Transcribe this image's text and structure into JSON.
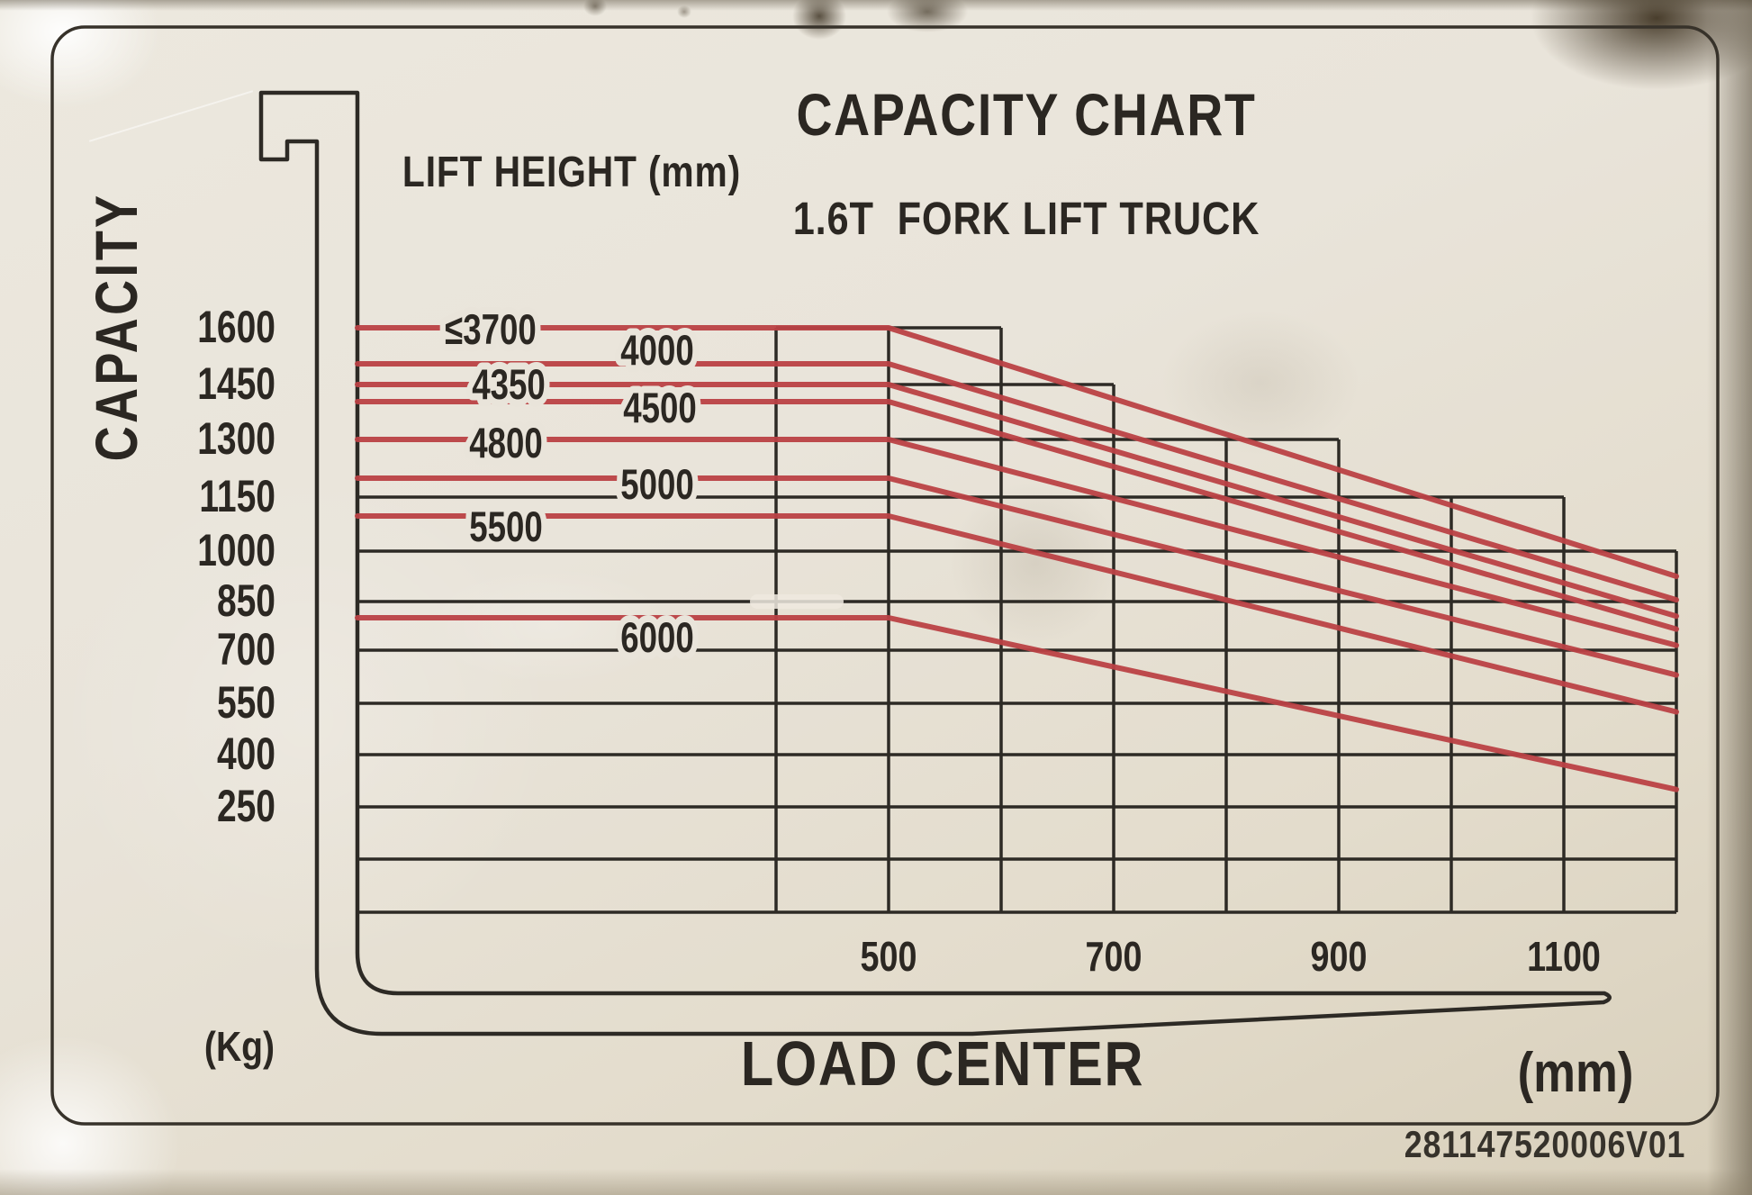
{
  "label": {
    "title": "CAPACITY CHART",
    "subtitle": "1.6T  FORK LIFT TRUCK",
    "serial_number": "281147520006V01"
  },
  "axes": {
    "y_title": "CAPACITY",
    "y_unit": "(Kg)",
    "x_title": "LOAD CENTER",
    "x_unit": "(mm)",
    "lift_height_title": "LIFT HEIGHT (mm)",
    "y_ticks_kg": [
      1600,
      1450,
      1300,
      1150,
      1000,
      850,
      700,
      550,
      400,
      250
    ],
    "x_ticks_mm": [
      500,
      700,
      900,
      1100
    ]
  },
  "colors": {
    "background": "#e9e4da",
    "line_black": "#2d2a25",
    "curve_red": "#bb4144",
    "text": "#2b2722",
    "border": "#37322a"
  },
  "chart_data": {
    "type": "line",
    "title": "CAPACITY CHART",
    "subtitle": "1.6T FORK LIFT TRUCK",
    "xlabel": "LOAD CENTER (mm)",
    "ylabel": "CAPACITY (Kg)",
    "x_range_mm": [
      400,
      1200
    ],
    "y_gridline_spacing_kg": 150,
    "x_gridline_spacing_mm": 100,
    "curves_flat_until_mm": 500,
    "curves_end_at_mm": 1200,
    "series": [
      {
        "lift_height_mm": "≤3700",
        "rated_capacity_kg": 1600,
        "capacity_at_1200mm_kg": 925
      },
      {
        "lift_height_mm": "4000",
        "rated_capacity_kg": 1500,
        "capacity_at_1200mm_kg": 855
      },
      {
        "lift_height_mm": "4350",
        "rated_capacity_kg": 1450,
        "capacity_at_1200mm_kg": 805
      },
      {
        "lift_height_mm": "4500",
        "rated_capacity_kg": 1400,
        "capacity_at_1200mm_kg": 765
      },
      {
        "lift_height_mm": "4800",
        "rated_capacity_kg": 1300,
        "capacity_at_1200mm_kg": 715
      },
      {
        "lift_height_mm": "5000",
        "rated_capacity_kg": 1200,
        "capacity_at_1200mm_kg": 630
      },
      {
        "lift_height_mm": "5500",
        "rated_capacity_kg": 1100,
        "capacity_at_1200mm_kg": 525
      },
      {
        "lift_height_mm": "6000",
        "rated_capacity_kg": 800,
        "capacity_at_1200mm_kg": 300
      }
    ],
    "h_gridlines": [
      {
        "kg": 1600,
        "label": "1600",
        "from_mm": 400,
        "to_mm": 600
      },
      {
        "kg": 1450,
        "label": "1450",
        "from_mm": 500,
        "to_mm": 700
      },
      {
        "kg": 1300,
        "label": "1300",
        "from_mm": 500,
        "to_mm": 900
      },
      {
        "kg": 1150,
        "label": "1150",
        "from_mm": null,
        "to_mm": 1100
      },
      {
        "kg": 1000,
        "label": "1000",
        "from_mm": null,
        "to_mm": 1200
      },
      {
        "kg": 850,
        "label": "850",
        "from_mm": null,
        "to_mm": 1200
      },
      {
        "kg": 700,
        "label": "700",
        "from_mm": null,
        "to_mm": 1200
      },
      {
        "kg": 550,
        "label": "550",
        "from_mm": null,
        "to_mm": 1200
      },
      {
        "kg": 400,
        "label": "400",
        "from_mm": null,
        "to_mm": 1200
      },
      {
        "kg": 250,
        "label": "250",
        "from_mm": null,
        "to_mm": 1200
      },
      {
        "kg": 100,
        "label": null,
        "from_mm": null,
        "to_mm": 1200
      },
      {
        "kg": -50,
        "label": null,
        "from_mm": null,
        "to_mm": 1200
      }
    ],
    "v_gridlines": [
      {
        "mm": 400,
        "top_kg": 1600
      },
      {
        "mm": 500,
        "top_kg": 1600
      },
      {
        "mm": 600,
        "top_kg": 1600
      },
      {
        "mm": 700,
        "top_kg": 1450
      },
      {
        "mm": 800,
        "top_kg": 1300
      },
      {
        "mm": 900,
        "top_kg": 1300
      },
      {
        "mm": 1000,
        "top_kg": 1150
      },
      {
        "mm": 1100,
        "top_kg": 1150
      },
      {
        "mm": 1200,
        "top_kg": 1000
      }
    ],
    "envelope_steps": [
      {
        "capacity_kg": 1600,
        "from_mm": 400,
        "to_mm": 600
      },
      {
        "capacity_kg": 1450,
        "from_mm": 600,
        "to_mm": 700
      },
      {
        "capacity_kg": 1300,
        "from_mm": 700,
        "to_mm": 900
      },
      {
        "capacity_kg": 1150,
        "from_mm": 900,
        "to_mm": 1100
      },
      {
        "capacity_kg": 1000,
        "from_mm": 1100,
        "to_mm": 1200
      }
    ],
    "x_ticks_mm": [
      500,
      700,
      900,
      1100
    ],
    "y_ticks_kg": [
      1600,
      1450,
      1300,
      1150,
      1000,
      850,
      700,
      550,
      400,
      250
    ]
  }
}
